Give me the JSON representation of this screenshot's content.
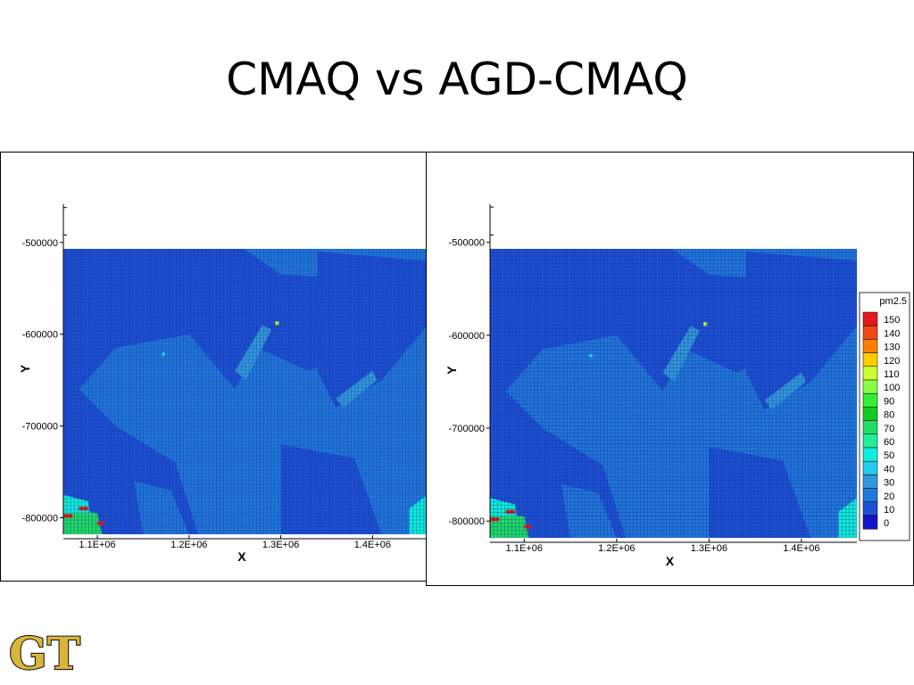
{
  "title": "CMAQ vs AGD-CMAQ",
  "logo": "GT",
  "colors": {
    "background": "#ffffff",
    "logo_gold": "#d9b53a",
    "grid_line": "#0b2f7a"
  },
  "chart_data": [
    {
      "type": "heatmap",
      "title": "",
      "xlabel": "X",
      "ylabel": "Y",
      "x_ticks": [
        "1.1E+06",
        "1.2E+06",
        "1.3E+06",
        "1.4E+06"
      ],
      "x_tick_values": [
        1100000,
        1200000,
        1300000,
        1400000
      ],
      "y_ticks": [
        "-500000",
        "-600000",
        "-700000",
        "-800000"
      ],
      "y_tick_values": [
        -500000,
        -600000,
        -700000,
        -800000
      ],
      "xlim": [
        1063000,
        1460000
      ],
      "ylim": [
        -818000,
        -507000
      ],
      "grid": true,
      "legend": false,
      "field": {
        "background_value": 10,
        "regions": [
          {
            "shape": "polygon",
            "value": 22,
            "points": [
              [
                1120000,
                -615000
              ],
              [
                1200000,
                -600000
              ],
              [
                1250000,
                -660000
              ],
              [
                1275000,
                -615000
              ],
              [
                1330000,
                -640000
              ],
              [
                1420000,
                -600000
              ],
              [
                1460000,
                -560000
              ],
              [
                1460000,
                -818000
              ],
              [
                1210000,
                -818000
              ],
              [
                1185000,
                -740000
              ],
              [
                1120000,
                -700000
              ],
              [
                1080000,
                -660000
              ]
            ]
          },
          {
            "shape": "polygon",
            "value": 20,
            "points": [
              [
                1260000,
                -507000
              ],
              [
                1460000,
                -507000
              ],
              [
                1460000,
                -545000
              ],
              [
                1300000,
                -535000
              ]
            ]
          },
          {
            "shape": "polygon",
            "value": 20,
            "points": [
              [
                1140000,
                -760000
              ],
              [
                1180000,
                -770000
              ],
              [
                1200000,
                -818000
              ],
              [
                1150000,
                -818000
              ]
            ]
          },
          {
            "shape": "polygon",
            "value": 10,
            "points": [
              [
                1300000,
                -720000
              ],
              [
                1380000,
                -735000
              ],
              [
                1410000,
                -818000
              ],
              [
                1300000,
                -818000
              ]
            ]
          },
          {
            "shape": "polygon",
            "value": 10,
            "points": [
              [
                1340000,
                -510000
              ],
              [
                1460000,
                -520000
              ],
              [
                1460000,
                -590000
              ],
              [
                1410000,
                -650000
              ],
              [
                1360000,
                -680000
              ],
              [
                1340000,
                -640000
              ]
            ]
          },
          {
            "shape": "polygon",
            "value": 10,
            "points": [
              [
                1180000,
                -507000
              ],
              [
                1250000,
                -507000
              ],
              [
                1240000,
                -590000
              ],
              [
                1190000,
                -560000
              ]
            ]
          },
          {
            "shape": "polygon",
            "value": 35,
            "points": [
              [
                1250000,
                -640000
              ],
              [
                1280000,
                -590000
              ],
              [
                1290000,
                -595000
              ],
              [
                1262000,
                -650000
              ]
            ]
          },
          {
            "shape": "polygon",
            "value": 30,
            "points": [
              [
                1360000,
                -670000
              ],
              [
                1400000,
                -640000
              ],
              [
                1405000,
                -650000
              ],
              [
                1368000,
                -680000
              ]
            ]
          },
          {
            "shape": "polygon",
            "value": 75,
            "points": [
              [
                1063000,
                -790000
              ],
              [
                1100000,
                -795000
              ],
              [
                1105000,
                -818000
              ],
              [
                1063000,
                -818000
              ]
            ]
          },
          {
            "shape": "polygon",
            "value": 55,
            "points": [
              [
                1063000,
                -775000
              ],
              [
                1090000,
                -782000
              ],
              [
                1092000,
                -795000
              ],
              [
                1063000,
                -795000
              ]
            ]
          },
          {
            "shape": "polygon",
            "value": 55,
            "points": [
              [
                1440000,
                -790000
              ],
              [
                1460000,
                -775000
              ],
              [
                1460000,
                -818000
              ],
              [
                1440000,
                -818000
              ]
            ]
          },
          {
            "shape": "rect",
            "value": 150,
            "x": [
              1063000,
              1073000
            ],
            "y": [
              -800000,
              -796000
            ]
          },
          {
            "shape": "rect",
            "value": 150,
            "x": [
              1080000,
              1090000
            ],
            "y": [
              -792000,
              -788000
            ]
          },
          {
            "shape": "rect",
            "value": 150,
            "x": [
              1100000,
              1108000
            ],
            "y": [
              -808000,
              -804000
            ]
          },
          {
            "shape": "rect",
            "value": 110,
            "x": [
              1294000,
              1298000
            ],
            "y": [
              -590000,
              -586000
            ]
          },
          {
            "shape": "rect",
            "value": 40,
            "x": [
              1170000,
              1174000
            ],
            "y": [
              -624000,
              -620000
            ]
          }
        ]
      }
    },
    {
      "type": "heatmap",
      "title": "",
      "xlabel": "X",
      "ylabel": "Y",
      "x_ticks": [
        "1.1E+06",
        "1.2E+06",
        "1.3E+06",
        "1.4E+06"
      ],
      "x_tick_values": [
        1100000,
        1200000,
        1300000,
        1400000
      ],
      "y_ticks": [
        "-500000",
        "-600000",
        "-700000",
        "-800000"
      ],
      "y_tick_values": [
        -500000,
        -600000,
        -700000,
        -800000
      ],
      "xlim": [
        1063000,
        1460000
      ],
      "ylim": [
        -818000,
        -507000
      ],
      "grid": true,
      "legend": true,
      "legend_position": "right",
      "legend_title": "pm2.5",
      "legend_levels": [
        {
          "value": 150,
          "label": "150",
          "color": "#e31a1c"
        },
        {
          "value": 140,
          "label": "140",
          "color": "#f04a17"
        },
        {
          "value": 130,
          "label": "130",
          "color": "#ff7f00"
        },
        {
          "value": 120,
          "label": "120",
          "color": "#ffcc00"
        },
        {
          "value": 110,
          "label": "110",
          "color": "#ccff33"
        },
        {
          "value": 100,
          "label": "100",
          "color": "#88ff44"
        },
        {
          "value": 90,
          "label": "90",
          "color": "#33ee33"
        },
        {
          "value": 80,
          "label": "80",
          "color": "#11cc22"
        },
        {
          "value": 70,
          "label": "70",
          "color": "#22dd66"
        },
        {
          "value": 60,
          "label": "60",
          "color": "#22ee99"
        },
        {
          "value": 50,
          "label": "50",
          "color": "#11eedd"
        },
        {
          "value": 40,
          "label": "40",
          "color": "#22ccee"
        },
        {
          "value": 30,
          "label": "30",
          "color": "#3399dd"
        },
        {
          "value": 20,
          "label": "20",
          "color": "#2277dd"
        },
        {
          "value": 10,
          "label": "10",
          "color": "#1e4fd6"
        },
        {
          "value": 0,
          "label": "0",
          "color": "#1414c8"
        }
      ],
      "field": {
        "background_value": 10,
        "regions": [
          {
            "shape": "polygon",
            "value": 22,
            "points": [
              [
                1120000,
                -615000
              ],
              [
                1200000,
                -600000
              ],
              [
                1250000,
                -660000
              ],
              [
                1275000,
                -615000
              ],
              [
                1330000,
                -640000
              ],
              [
                1420000,
                -600000
              ],
              [
                1460000,
                -560000
              ],
              [
                1460000,
                -818000
              ],
              [
                1210000,
                -818000
              ],
              [
                1185000,
                -740000
              ],
              [
                1120000,
                -700000
              ],
              [
                1080000,
                -660000
              ]
            ]
          },
          {
            "shape": "polygon",
            "value": 20,
            "points": [
              [
                1260000,
                -507000
              ],
              [
                1460000,
                -507000
              ],
              [
                1460000,
                -545000
              ],
              [
                1300000,
                -535000
              ]
            ]
          },
          {
            "shape": "polygon",
            "value": 20,
            "points": [
              [
                1140000,
                -760000
              ],
              [
                1180000,
                -770000
              ],
              [
                1200000,
                -818000
              ],
              [
                1150000,
                -818000
              ]
            ]
          },
          {
            "shape": "polygon",
            "value": 10,
            "points": [
              [
                1300000,
                -720000
              ],
              [
                1380000,
                -735000
              ],
              [
                1410000,
                -818000
              ],
              [
                1300000,
                -818000
              ]
            ]
          },
          {
            "shape": "polygon",
            "value": 10,
            "points": [
              [
                1340000,
                -510000
              ],
              [
                1460000,
                -520000
              ],
              [
                1460000,
                -590000
              ],
              [
                1410000,
                -650000
              ],
              [
                1360000,
                -680000
              ],
              [
                1340000,
                -640000
              ]
            ]
          },
          {
            "shape": "polygon",
            "value": 10,
            "points": [
              [
                1180000,
                -507000
              ],
              [
                1250000,
                -507000
              ],
              [
                1240000,
                -590000
              ],
              [
                1190000,
                -560000
              ]
            ]
          },
          {
            "shape": "polygon",
            "value": 35,
            "points": [
              [
                1250000,
                -640000
              ],
              [
                1280000,
                -590000
              ],
              [
                1290000,
                -595000
              ],
              [
                1262000,
                -650000
              ]
            ]
          },
          {
            "shape": "polygon",
            "value": 30,
            "points": [
              [
                1360000,
                -670000
              ],
              [
                1400000,
                -640000
              ],
              [
                1405000,
                -650000
              ],
              [
                1368000,
                -680000
              ]
            ]
          },
          {
            "shape": "polygon",
            "value": 75,
            "points": [
              [
                1063000,
                -790000
              ],
              [
                1100000,
                -795000
              ],
              [
                1105000,
                -818000
              ],
              [
                1063000,
                -818000
              ]
            ]
          },
          {
            "shape": "polygon",
            "value": 55,
            "points": [
              [
                1063000,
                -775000
              ],
              [
                1090000,
                -782000
              ],
              [
                1092000,
                -795000
              ],
              [
                1063000,
                -795000
              ]
            ]
          },
          {
            "shape": "polygon",
            "value": 55,
            "points": [
              [
                1440000,
                -790000
              ],
              [
                1460000,
                -775000
              ],
              [
                1460000,
                -818000
              ],
              [
                1440000,
                -818000
              ]
            ]
          },
          {
            "shape": "rect",
            "value": 150,
            "x": [
              1063000,
              1073000
            ],
            "y": [
              -800000,
              -796000
            ]
          },
          {
            "shape": "rect",
            "value": 150,
            "x": [
              1080000,
              1090000
            ],
            "y": [
              -792000,
              -788000
            ]
          },
          {
            "shape": "rect",
            "value": 150,
            "x": [
              1100000,
              1108000
            ],
            "y": [
              -808000,
              -804000
            ]
          },
          {
            "shape": "rect",
            "value": 110,
            "x": [
              1294000,
              1298000
            ],
            "y": [
              -590000,
              -586000
            ]
          },
          {
            "shape": "rect",
            "value": 40,
            "x": [
              1170000,
              1174000
            ],
            "y": [
              -624000,
              -620000
            ]
          }
        ]
      }
    }
  ]
}
